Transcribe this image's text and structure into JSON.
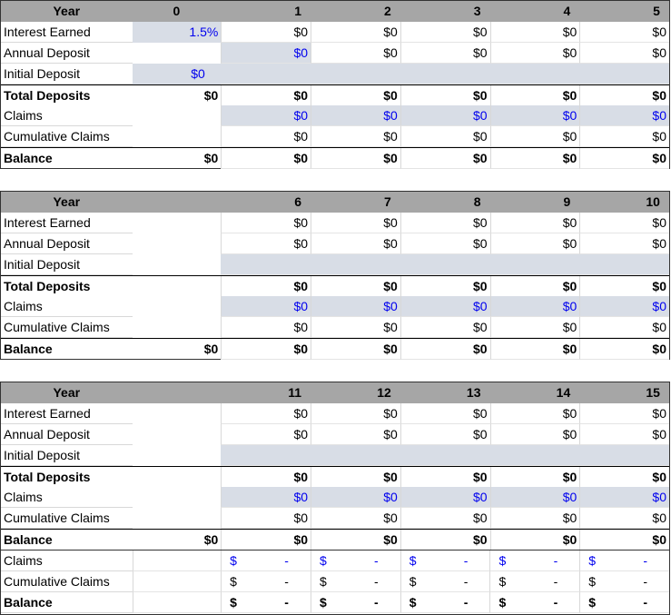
{
  "header_label": "Year",
  "blocks": [
    {
      "years": [
        "0",
        "1",
        "2",
        "3",
        "4",
        "5"
      ],
      "rows": [
        {
          "label": "Interest Earned",
          "c0": "1.5%",
          "vals": [
            "$0",
            "$0",
            "$0",
            "$0",
            "$0"
          ]
        },
        {
          "label": "Annual Deposit",
          "c0": "",
          "vals": [
            "$0",
            "$0",
            "$0",
            "$0",
            "$0"
          ]
        },
        {
          "label": "Initial Deposit",
          "c0": "$0",
          "vals": [
            "",
            "",
            "",
            "",
            ""
          ]
        },
        {
          "label": "Total Deposits",
          "c0": "$0",
          "vals": [
            "$0",
            "$0",
            "$0",
            "$0",
            "$0"
          ]
        },
        {
          "label": "Claims",
          "c0": "",
          "vals": [
            "$0",
            "$0",
            "$0",
            "$0",
            "$0"
          ]
        },
        {
          "label": "Cumulative Claims",
          "c0": "",
          "vals": [
            "$0",
            "$0",
            "$0",
            "$0",
            "$0"
          ]
        },
        {
          "label": "Balance",
          "c0": "$0",
          "vals": [
            "$0",
            "$0",
            "$0",
            "$0",
            "$0"
          ]
        }
      ]
    },
    {
      "years": [
        "",
        "6",
        "7",
        "8",
        "9",
        "10"
      ],
      "rows": [
        {
          "label": "Interest Earned",
          "c0": "",
          "vals": [
            "$0",
            "$0",
            "$0",
            "$0",
            "$0"
          ]
        },
        {
          "label": "Annual Deposit",
          "c0": "",
          "vals": [
            "$0",
            "$0",
            "$0",
            "$0",
            "$0"
          ]
        },
        {
          "label": "Initial Deposit",
          "c0": "",
          "vals": [
            "",
            "",
            "",
            "",
            ""
          ]
        },
        {
          "label": "Total Deposits",
          "c0": "",
          "vals": [
            "$0",
            "$0",
            "$0",
            "$0",
            "$0"
          ]
        },
        {
          "label": "Claims",
          "c0": "",
          "vals": [
            "$0",
            "$0",
            "$0",
            "$0",
            "$0"
          ]
        },
        {
          "label": "Cumulative Claims",
          "c0": "",
          "vals": [
            "$0",
            "$0",
            "$0",
            "$0",
            "$0"
          ]
        },
        {
          "label": "Balance",
          "c0": "$0",
          "vals": [
            "$0",
            "$0",
            "$0",
            "$0",
            "$0"
          ]
        }
      ]
    },
    {
      "years": [
        "",
        "11",
        "12",
        "13",
        "14",
        "15"
      ],
      "rows": [
        {
          "label": "Interest Earned",
          "c0": "",
          "vals": [
            "$0",
            "$0",
            "$0",
            "$0",
            "$0"
          ]
        },
        {
          "label": "Annual Deposit",
          "c0": "",
          "vals": [
            "$0",
            "$0",
            "$0",
            "$0",
            "$0"
          ]
        },
        {
          "label": "Initial Deposit",
          "c0": "",
          "vals": [
            "",
            "",
            "",
            "",
            ""
          ]
        },
        {
          "label": "Total Deposits",
          "c0": "",
          "vals": [
            "$0",
            "$0",
            "$0",
            "$0",
            "$0"
          ]
        },
        {
          "label": "Claims",
          "c0": "",
          "vals": [
            "$0",
            "$0",
            "$0",
            "$0",
            "$0"
          ]
        },
        {
          "label": "Cumulative Claims",
          "c0": "",
          "vals": [
            "$0",
            "$0",
            "$0",
            "$0",
            "$0"
          ]
        },
        {
          "label": "Balance",
          "c0": "$0",
          "vals": [
            "$0",
            "$0",
            "$0",
            "$0",
            "$0"
          ]
        }
      ]
    }
  ],
  "extra_rows": [
    {
      "label": "Claims",
      "sym": "$",
      "dash": "-"
    },
    {
      "label": "Cumulative Claims",
      "sym": "$",
      "dash": "-"
    },
    {
      "label": "Balance",
      "sym": "$",
      "dash": "-"
    }
  ],
  "colors": {
    "input_blue": "#0000ee",
    "shade": "#d8dde6",
    "header": "#a6a6a6"
  }
}
